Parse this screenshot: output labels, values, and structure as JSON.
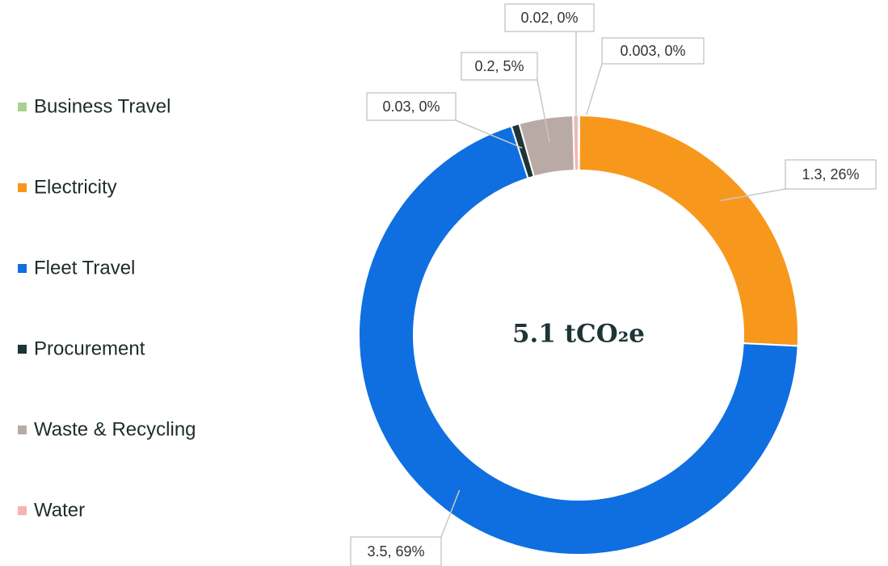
{
  "chart_data": {
    "type": "donut",
    "categories": [
      "Business Travel",
      "Electricity",
      "Fleet Travel",
      "Procurement",
      "Waste & Recycling",
      "Water"
    ],
    "values": [
      0.003,
      1.3,
      3.5,
      0.03,
      0.2,
      0.02
    ],
    "value_labels": [
      "0.003, 0%",
      "1.3, 26%",
      "3.5, 69%",
      "0.03, 0%",
      "0.2, 5%",
      "0.02, 0%"
    ],
    "colors": [
      "#a9d18e",
      "#f7981d",
      "#0f6fe0",
      "#1e3535",
      "#b9aaa6",
      "#f6b3b3"
    ],
    "center_text": "5.1 tCO₂e",
    "legend": "left"
  }
}
